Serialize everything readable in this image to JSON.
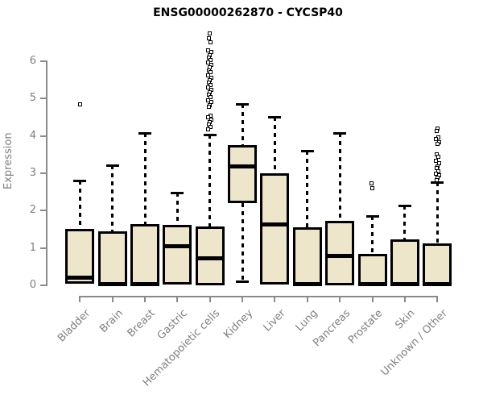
{
  "colors": {
    "background": "#ffffff",
    "box_fill": "#ede6cb",
    "box_border": "#000000",
    "median": "#000000",
    "axis": "#8a8a8a",
    "axis_text": "#7f7f7f",
    "title_text": "#000000",
    "outlier": "#000000"
  },
  "chart_data": {
    "type": "boxplot",
    "title": "ENSG00000262870 - CYCSP40",
    "xlabel": "",
    "ylabel": "Expression",
    "ylim": [
      0,
      6.9
    ],
    "yticks": [
      0,
      1,
      2,
      3,
      4,
      5,
      6
    ],
    "grid": false,
    "legend": false,
    "categories": [
      "Bladder",
      "Brain",
      "Breast",
      "Gastric",
      "Hematopoietic cells",
      "Kidney",
      "Liver",
      "Lung",
      "Pancreas",
      "Prostate",
      "Skin",
      "Unknown / Other"
    ],
    "boxes": [
      {
        "label": "Bladder",
        "q1": 0.04,
        "median": 0.2,
        "q3": 1.52,
        "whisker_low": null,
        "whisker_high": 2.81,
        "outliers": [
          4.85
        ]
      },
      {
        "label": "Brain",
        "q1": 0.01,
        "median": 0.04,
        "q3": 1.45,
        "whisker_low": null,
        "whisker_high": 3.22,
        "outliers": []
      },
      {
        "label": "Breast",
        "q1": 0.01,
        "median": 0.04,
        "q3": 1.65,
        "whisker_low": null,
        "whisker_high": 4.08,
        "outliers": []
      },
      {
        "label": "Gastric",
        "q1": 0.02,
        "median": 1.05,
        "q3": 1.62,
        "whisker_low": null,
        "whisker_high": 2.48,
        "outliers": []
      },
      {
        "label": "Hematopoietic cells",
        "q1": 0.01,
        "median": 0.73,
        "q3": 1.58,
        "whisker_low": null,
        "whisker_high": 4.04,
        "outliers": [
          6.75,
          6.62,
          6.5,
          6.3,
          6.24,
          6.17,
          6.1,
          6.03,
          5.96,
          5.9,
          5.83,
          5.76,
          5.7,
          5.63,
          5.56,
          5.5,
          5.43,
          5.36,
          5.3,
          5.23,
          5.16,
          5.1,
          5.03,
          4.96,
          4.9,
          4.83,
          4.78,
          4.55,
          4.5,
          4.44,
          4.38,
          4.3,
          4.24,
          4.18
        ]
      },
      {
        "label": "Kidney",
        "q1": 2.2,
        "median": 3.18,
        "q3": 3.76,
        "whisker_low": 0.1,
        "whisker_high": 4.85,
        "outliers": []
      },
      {
        "label": "Liver",
        "q1": 0.02,
        "median": 1.62,
        "q3": 3.0,
        "whisker_low": null,
        "whisker_high": 4.51,
        "outliers": []
      },
      {
        "label": "Lung",
        "q1": 0.01,
        "median": 0.04,
        "q3": 1.55,
        "whisker_low": null,
        "whisker_high": 3.61,
        "outliers": []
      },
      {
        "label": "Pancreas",
        "q1": 0.01,
        "median": 0.78,
        "q3": 1.72,
        "whisker_low": null,
        "whisker_high": 4.09,
        "outliers": []
      },
      {
        "label": "Prostate",
        "q1": 0.01,
        "median": 0.03,
        "q3": 0.84,
        "whisker_low": null,
        "whisker_high": 1.86,
        "outliers": [
          2.61,
          2.72
        ]
      },
      {
        "label": "Skin",
        "q1": 0.01,
        "median": 0.04,
        "q3": 1.22,
        "whisker_low": null,
        "whisker_high": 2.14,
        "outliers": []
      },
      {
        "label": "Unknown / Other",
        "q1": 0.01,
        "median": 0.04,
        "q3": 1.12,
        "whisker_low": null,
        "whisker_high": 2.76,
        "outliers": [
          4.2,
          4.14,
          3.97,
          3.91,
          3.84,
          3.78,
          3.51,
          3.45,
          3.33,
          3.28,
          3.19,
          3.13,
          3.06,
          3.0,
          2.94,
          2.88,
          2.82
        ]
      }
    ]
  }
}
